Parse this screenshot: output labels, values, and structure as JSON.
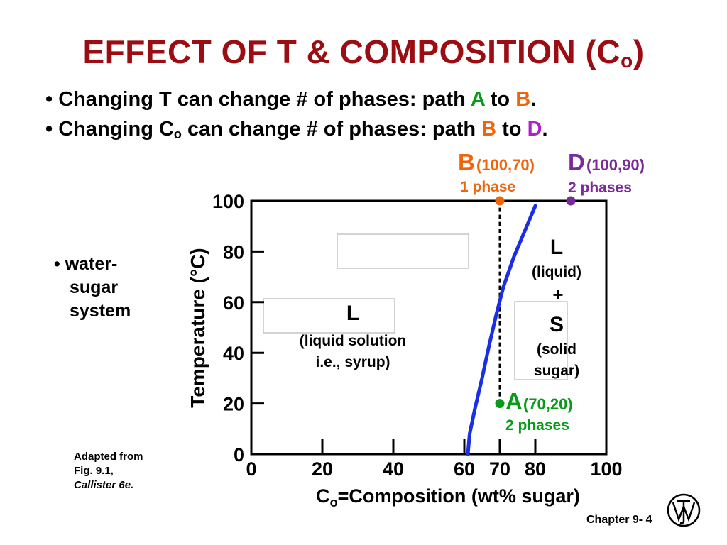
{
  "title": {
    "main": "EFFECT OF T & COMPOSITION (C",
    "sub": "o",
    "end": ")"
  },
  "bullets": [
    {
      "text1": "Changing T can change # of phases:  path ",
      "a": "A",
      "mid": " to ",
      "b": "B",
      "end": "."
    },
    {
      "text1": "Changing C",
      "sub": "o",
      "text2": " can change # of phases: path ",
      "a": "B",
      "mid": " to ",
      "b": "D",
      "end": "."
    }
  ],
  "side_bullet": {
    "line1": "water-",
    "line2": "sugar",
    "line3": "system"
  },
  "credit": {
    "line1": "Adapted from",
    "line2": "Fig. 9.1,",
    "line3": "Callister 6e."
  },
  "footer": {
    "chapter": "Chapter 9- 4"
  },
  "colors": {
    "title": "#9b0d12",
    "A": "#0a9a1a",
    "B": "#f0640a",
    "D": "#b020c8",
    "curve": "#1a2ee6",
    "points_label_D": "#7a2a9a"
  },
  "chart_data": {
    "type": "phase-diagram",
    "xlabel": {
      "main": "C",
      "sub": "o",
      "rest": "=Composition (wt% sugar)"
    },
    "ylabel": "Temperature (°C)",
    "xlim": [
      0,
      100
    ],
    "ylim": [
      0,
      100
    ],
    "x_ticks": [
      "0",
      "20",
      "40",
      "60",
      "70",
      "80",
      "100"
    ],
    "x_tick_values": [
      0,
      20,
      40,
      60,
      70,
      80,
      100
    ],
    "y_ticks": [
      "0",
      "20",
      "40",
      "60",
      "80",
      "100"
    ],
    "y_tick_values": [
      0,
      20,
      40,
      60,
      80,
      100
    ],
    "solubility_curve": [
      [
        61,
        0
      ],
      [
        61.5,
        8
      ],
      [
        63,
        18
      ],
      [
        65,
        30
      ],
      [
        67,
        43
      ],
      [
        69,
        55
      ],
      [
        71,
        66
      ],
      [
        74,
        78
      ],
      [
        77,
        88
      ],
      [
        80,
        98
      ]
    ],
    "points": [
      {
        "id": "A",
        "x": 70,
        "y": 20,
        "label": "A",
        "coords": "(70,20)",
        "phases": "2 phases",
        "color": "#0a9a1a"
      },
      {
        "id": "B",
        "x": 70,
        "y": 100,
        "label": "B",
        "coords": "(100,70)",
        "phases": "1 phase",
        "color": "#f0640a"
      },
      {
        "id": "D",
        "x": 90,
        "y": 100,
        "label": "D",
        "coords": "(100,90)",
        "phases": "2 phases",
        "color": "#7a2a9a"
      }
    ],
    "regions": {
      "liquid": {
        "l1": "L",
        "l2": "(liquid solution",
        "l3": "i.e., syrup)"
      },
      "mixed": {
        "l1": "L",
        "l2": "(liquid)",
        "l3": "+",
        "l4": "S",
        "l5": "(solid",
        "l6": "sugar)"
      }
    }
  }
}
